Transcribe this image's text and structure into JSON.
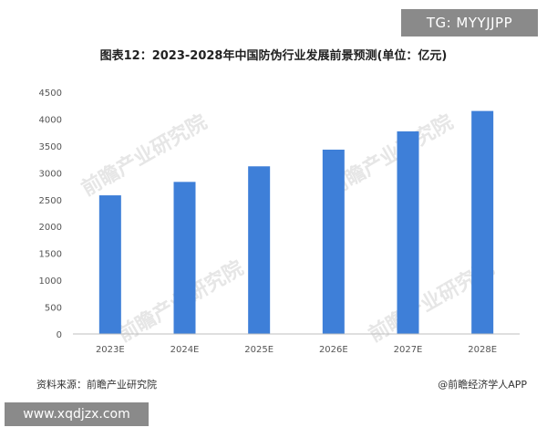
{
  "badges": {
    "telegram": "TG: MYYJJPP",
    "website": "www.xqdjzx.com"
  },
  "watermark": "前瞻产业研究院",
  "footer": {
    "source": "资料来源：前瞻产业研究院",
    "credit": "@前瞻经济学人APP"
  },
  "colors": {
    "bar": "#3e7fd8",
    "axis": "#bfbfbf",
    "badge_bg": "#8a8a8a"
  },
  "chart_data": {
    "type": "bar",
    "title": "图表12：2023-2028年中国防伪行业发展前景预测(单位：亿元)",
    "xlabel": "",
    "ylabel": "",
    "categories": [
      "2023E",
      "2024E",
      "2025E",
      "2026E",
      "2027E",
      "2028E"
    ],
    "values": [
      2580,
      2830,
      3120,
      3430,
      3770,
      4150
    ],
    "ylim": [
      0,
      4500
    ],
    "yticks": [
      0,
      500,
      1000,
      1500,
      2000,
      2500,
      3000,
      3500,
      4000,
      4500
    ],
    "grid": false,
    "legend": "none"
  }
}
